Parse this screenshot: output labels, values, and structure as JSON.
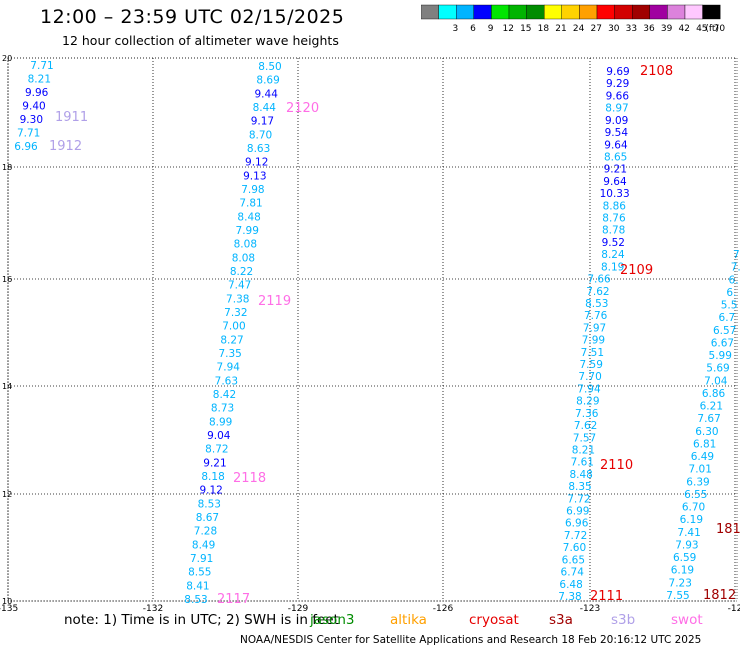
{
  "header": {
    "title": "12:00 – 23:59 UTC 02/15/2025",
    "subtitle": "12 hour collection of altimeter wave heights"
  },
  "legend": {
    "unit": "(ft)",
    "swatches": [
      {
        "label": "",
        "color": "#808080"
      },
      {
        "label": "3",
        "color": "#00ffff"
      },
      {
        "label": "6",
        "color": "#00b4ff"
      },
      {
        "label": "9",
        "color": "#0000ff"
      },
      {
        "label": "12",
        "color": "#00e600"
      },
      {
        "label": "15",
        "color": "#00b400"
      },
      {
        "label": "18",
        "color": "#008c00"
      },
      {
        "label": "21",
        "color": "#ffff00"
      },
      {
        "label": "24",
        "color": "#ffd200"
      },
      {
        "label": "27",
        "color": "#ffa000"
      },
      {
        "label": "30",
        "color": "#ff0000"
      },
      {
        "label": "33",
        "color": "#d20000"
      },
      {
        "label": "36",
        "color": "#a00000"
      },
      {
        "label": "39",
        "color": "#a000a0"
      },
      {
        "label": "42",
        "color": "#dc82dc"
      },
      {
        "label": "45",
        "color": "#ffc8ff"
      },
      {
        "label": "70",
        "color": "#000000"
      }
    ]
  },
  "map": {
    "lon_ticks": [
      "-135",
      "-132",
      "-129",
      "-126",
      "-123",
      "-12"
    ],
    "lat_ticks": [
      "20",
      "18",
      "16",
      "14",
      "12",
      "10"
    ],
    "tracks": [
      {
        "id": "1911",
        "time_labels": [
          {
            "text": "1911",
            "color": "#b0a0e8"
          },
          {
            "text": "1912",
            "color": "#b0a0e8"
          }
        ],
        "heights": [
          "7.71",
          "8.21",
          "9.96",
          "9.40",
          "9.30",
          "7.71",
          "6.96"
        ]
      },
      {
        "id": "2117",
        "time_labels": [
          {
            "text": "2120",
            "color": "#ff6ee6"
          },
          {
            "text": "2119",
            "color": "#ff6ee6"
          },
          {
            "text": "2118",
            "color": "#ff6ee6"
          },
          {
            "text": "2117",
            "color": "#ff6ee6"
          }
        ],
        "heights": [
          "8.50",
          "8.69",
          "9.44",
          "8.44",
          "9.17",
          "8.70",
          "8.63",
          "9.12",
          "9.13",
          "7.98",
          "7.81",
          "8.48",
          "7.99",
          "8.08",
          "8.08",
          "8.22",
          "7.47",
          "7.38",
          "7.32",
          "7.00",
          "8.27",
          "7.35",
          "7.94",
          "7.63",
          "8.42",
          "8.73",
          "8.99",
          "9.04",
          "8.72",
          "9.21",
          "8.18",
          "9.12",
          "8.53",
          "8.67",
          "7.28",
          "8.49",
          "7.91",
          "8.55",
          "8.41",
          "8.53"
        ]
      },
      {
        "id": "2108",
        "time_labels": [
          {
            "text": "2108",
            "color": "#e60000"
          },
          {
            "text": "2109",
            "color": "#e60000"
          },
          {
            "text": "2110",
            "color": "#e60000"
          },
          {
            "text": "2111",
            "color": "#e60000"
          }
        ],
        "heights": [
          "9.69",
          "9.29",
          "9.66",
          "8.97",
          "9.09",
          "9.54",
          "9.64",
          "8.65",
          "9.21",
          "9.64",
          "10.33",
          "8.86",
          "8.76",
          "8.78",
          "9.52",
          "8.24",
          "8.19",
          "7.66",
          "7.62",
          "8.53",
          "7.76",
          "7.97",
          "7.99",
          "7.51",
          "7.59",
          "7.70",
          "7.94",
          "8.29",
          "7.36",
          "7.62",
          "7.57",
          "8.21",
          "7.61",
          "8.48",
          "8.35",
          "7.72",
          "6.99",
          "6.96",
          "7.72",
          "7.60",
          "6.65",
          "6.74",
          "6.48",
          "7.38"
        ]
      },
      {
        "id": "1812",
        "time_labels": [
          {
            "text": "181",
            "color": "#a00000"
          },
          {
            "text": "1812",
            "color": "#a00000"
          }
        ],
        "heights": [
          "7.",
          "7.",
          "6.",
          "6.",
          "5.5",
          "6.7",
          "6.57",
          "6.67",
          "5.99",
          "5.69",
          "7.04",
          "6.86",
          "6.21",
          "7.67",
          "6.30",
          "6.81",
          "6.49",
          "7.01",
          "6.39",
          "6.55",
          "6.70",
          "6.19",
          "7.41",
          "7.93",
          "6.59",
          "6.19",
          "7.23",
          "7.55"
        ]
      }
    ]
  },
  "footer": {
    "note": "note: 1) Time is in UTC; 2) SWH is in feet",
    "satellites": [
      {
        "name": "jason3",
        "color": "#008c00"
      },
      {
        "name": "altika",
        "color": "#ffa000"
      },
      {
        "name": "cryosat",
        "color": "#e60000"
      },
      {
        "name": "s3a",
        "color": "#a00000"
      },
      {
        "name": "s3b",
        "color": "#b0a0e8"
      },
      {
        "name": "swot",
        "color": "#ff6ee6"
      }
    ],
    "credit": "NOAA/NESDIS Center for Satellite Applications and Research   18 Feb 20:16:12 UTC 2025"
  }
}
